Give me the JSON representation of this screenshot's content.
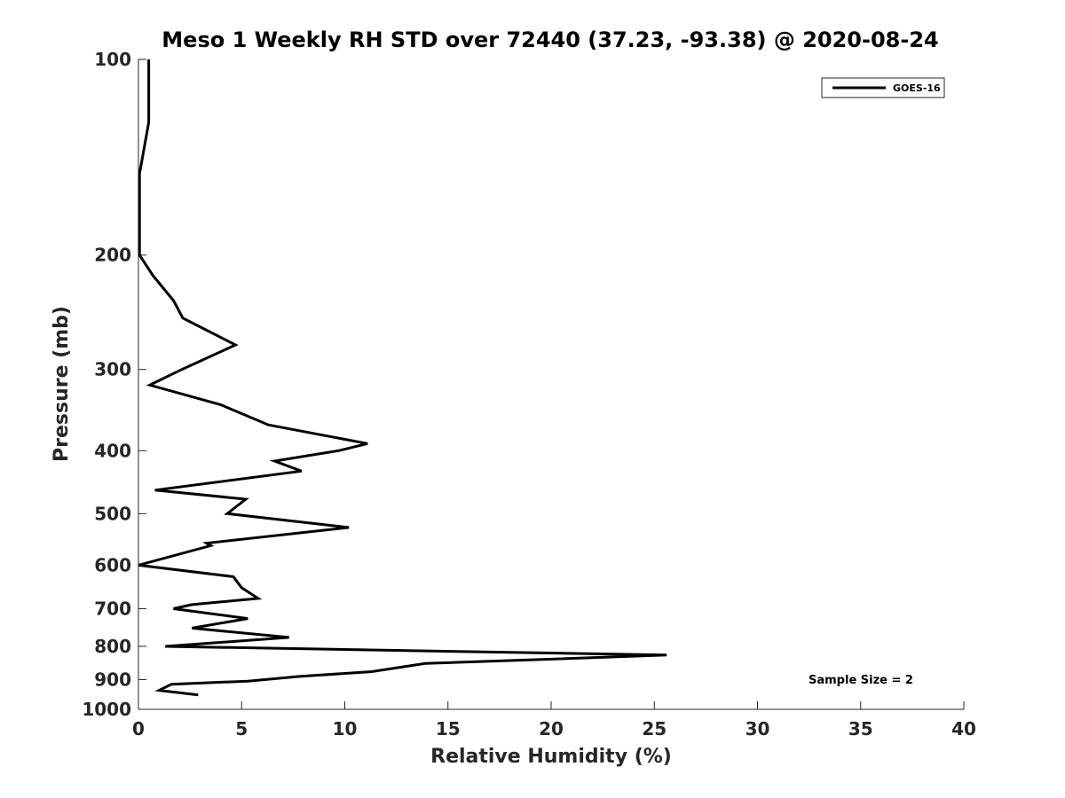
{
  "chart_data": {
    "type": "line",
    "title": "Meso 1 Weekly RH STD over 72440 (37.23, -93.38) @ 2020-08-24",
    "xlabel": "Relative Humidity (%)",
    "ylabel": "Pressure (mb)",
    "xlim": [
      0,
      40
    ],
    "ylim": [
      100,
      1000
    ],
    "y_scale": "log",
    "y_reversed": true,
    "grid": false,
    "x_ticks": [
      0,
      5,
      10,
      15,
      20,
      25,
      30,
      35,
      40
    ],
    "x_tick_labels": [
      "0",
      "5",
      "10",
      "15",
      "20",
      "25",
      "30",
      "35",
      "40"
    ],
    "y_ticks": [
      100,
      200,
      300,
      400,
      500,
      600,
      700,
      800,
      900,
      1000
    ],
    "y_tick_labels": [
      "100",
      "200",
      "300",
      "400",
      "500",
      "600",
      "700",
      "800",
      "900",
      "1000"
    ],
    "legend": {
      "position": "top-right",
      "entries": [
        "GOES-16"
      ]
    },
    "annotations": [
      {
        "text": "Sample Size = 2",
        "position": "bottom-right"
      }
    ],
    "series": [
      {
        "name": "GOES-16",
        "color": "#000000",
        "x": [
          0.5,
          0.5,
          0.05,
          0.05,
          0.05,
          0.7,
          1.7,
          2.15,
          4.7,
          2.1,
          0.55,
          4.0,
          6.3,
          11.1,
          9.7,
          6.6,
          7.9,
          0.8,
          5.2,
          4.3,
          10.2,
          3.3,
          3.5,
          0.0,
          4.6,
          5.0,
          5.8,
          2.6,
          1.7,
          5.3,
          2.6,
          7.3,
          1.3,
          25.6,
          13.9,
          11.3,
          7.8,
          5.3,
          1.6,
          1.0,
          2.9
        ],
        "y": [
          100,
          125,
          150,
          175,
          200,
          215,
          235,
          250,
          275,
          300,
          317,
          340,
          365,
          390,
          400,
          415,
          430,
          460,
          475,
          500,
          525,
          555,
          560,
          600,
          625,
          650,
          675,
          690,
          700,
          725,
          750,
          775,
          800,
          825,
          850,
          875,
          890,
          905,
          915,
          935,
          950
        ]
      }
    ]
  }
}
